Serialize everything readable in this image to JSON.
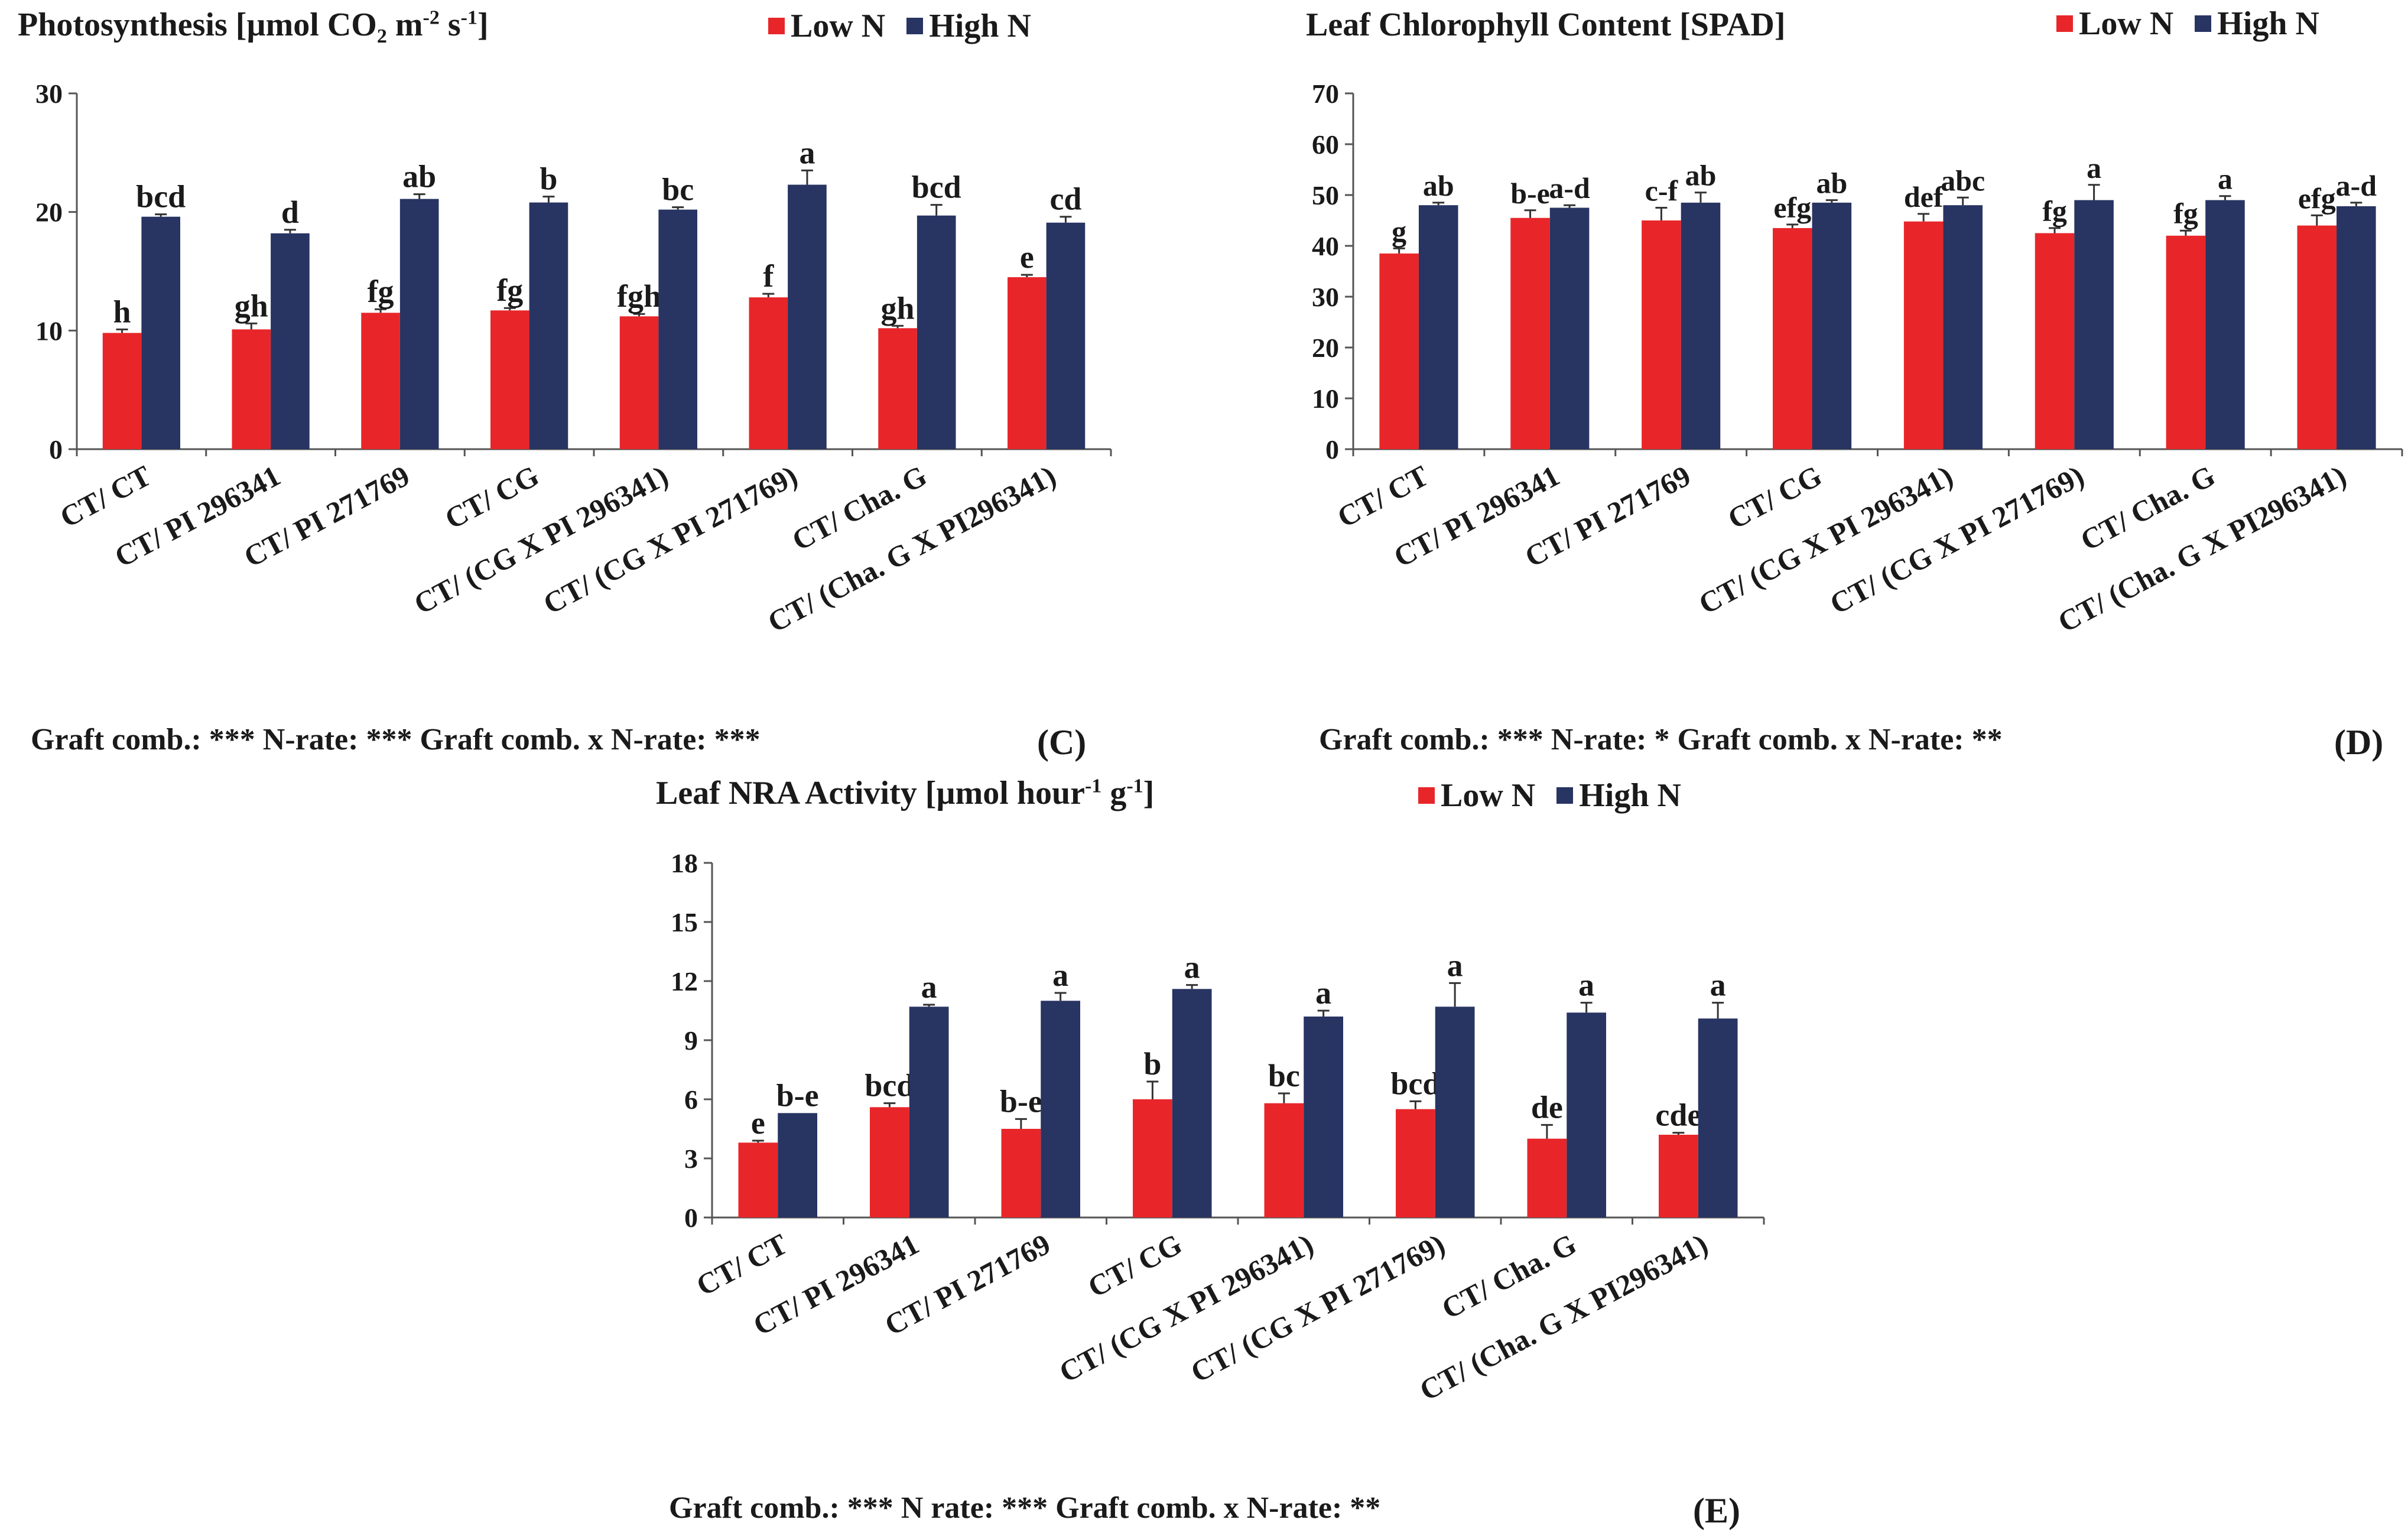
{
  "colors": {
    "low": "#e8262a",
    "high": "#283462",
    "axis": "#555555"
  },
  "panels": {
    "c": {
      "title_main": "Photosynthesis [µmol CO",
      "title_sub": "2",
      "title_after_sub": " m",
      "title_sup1": "-2",
      "title_mid": " s",
      "title_sup2": "-1",
      "title_end": "]",
      "legend_low": "Low N",
      "legend_high": "High N",
      "stats": "Graft comb.: *** N-rate: *** Graft comb. x N-rate: ***",
      "label": "(C)"
    },
    "d": {
      "title": "Leaf Chlorophyll Content [SPAD]",
      "legend_low": "Low N",
      "legend_high": "High N",
      "stats": "Graft comb.: ***   N-rate: *   Graft comb. x N-rate: **",
      "label": "(D)"
    },
    "e": {
      "title_main": "Leaf NRA Activity [µmol hour",
      "title_sup1": "-1",
      "title_mid": " g",
      "title_sup2": "-1",
      "title_end": "]",
      "legend_low": "Low N",
      "legend_high": "High N",
      "stats": "Graft comb.: *** N rate: *** Graft comb. x N-rate: **",
      "label": "(E)"
    }
  },
  "chart_data": [
    {
      "id": "c",
      "type": "bar",
      "title": "Photosynthesis [µmol CO2 m-2 s-1]",
      "categories": [
        "CT/ CT",
        "CT/ PI 296341",
        "CT/ PI 271769",
        "CT/ CG",
        "CT/ (CG X PI 296341)",
        "CT/ (CG X PI 271769)",
        "CT/ Cha. G",
        "CT/ (Cha. G X PI296341)"
      ],
      "ylim": [
        0,
        30
      ],
      "yticks": [
        0,
        10,
        20,
        30
      ],
      "series": [
        {
          "name": "Low N",
          "values": [
            9.8,
            10.1,
            11.5,
            11.7,
            11.2,
            12.8,
            10.2,
            14.5
          ],
          "errors": [
            0.3,
            0.5,
            0.3,
            0.2,
            0.2,
            0.3,
            0.2,
            0.2
          ],
          "letters": [
            "h",
            "gh",
            "fg",
            "fg",
            "fgh",
            "f",
            "gh",
            "e"
          ]
        },
        {
          "name": "High N",
          "values": [
            19.6,
            18.2,
            21.1,
            20.8,
            20.2,
            22.3,
            19.7,
            19.1
          ],
          "errors": [
            0.2,
            0.3,
            0.4,
            0.5,
            0.2,
            1.2,
            0.9,
            0.5
          ],
          "letters": [
            "bcd",
            "d",
            "ab",
            "b",
            "bc",
            "a",
            "bcd",
            "cd"
          ]
        }
      ],
      "legend": "top-right",
      "grid": false
    },
    {
      "id": "d",
      "type": "bar",
      "title": "Leaf Chlorophyll Content [SPAD]",
      "categories": [
        "CT/ CT",
        "CT/ PI 296341",
        "CT/ PI 271769",
        "CT/ CG",
        "CT/ (CG X PI 296341)",
        "CT/ (CG X PI 271769)",
        "CT/ Cha. G",
        "CT/ (Cha. G X PI296341)"
      ],
      "ylim": [
        0,
        70
      ],
      "yticks": [
        0,
        10,
        20,
        30,
        40,
        50,
        60,
        70
      ],
      "series": [
        {
          "name": "Low N",
          "values": [
            38.5,
            45.5,
            45.0,
            43.5,
            44.8,
            42.5,
            42.0,
            44.0
          ],
          "errors": [
            1.0,
            1.5,
            2.5,
            0.7,
            1.5,
            1.0,
            1.0,
            2.0
          ],
          "letters": [
            "g",
            "b-e",
            "c-f",
            "efg",
            "def",
            "fg",
            "fg",
            "efg"
          ]
        },
        {
          "name": "High N",
          "values": [
            48.0,
            47.5,
            48.5,
            48.5,
            48.0,
            49.0,
            49.0,
            47.8
          ],
          "errors": [
            0.5,
            0.5,
            2.0,
            0.5,
            1.5,
            3.0,
            0.8,
            0.7
          ],
          "letters": [
            "ab",
            "a-d",
            "ab",
            "ab",
            "abc",
            "a",
            "a",
            "a-d"
          ]
        }
      ],
      "legend": "top-right",
      "grid": false
    },
    {
      "id": "e",
      "type": "bar",
      "title": "Leaf NRA Activity [µmol hour-1 g-1]",
      "categories": [
        "CT/ CT",
        "CT/ PI 296341",
        "CT/ PI 271769",
        "CT/ CG",
        "CT/ (CG X PI 296341)",
        "CT/ (CG X PI 271769)",
        "CT/ Cha. G",
        "CT/ (Cha. G X PI296341)"
      ],
      "ylim": [
        0,
        18
      ],
      "yticks": [
        0,
        3,
        6,
        9,
        12,
        15,
        18
      ],
      "series": [
        {
          "name": "Low N",
          "values": [
            3.8,
            5.6,
            4.5,
            6.0,
            5.8,
            5.5,
            4.0,
            4.2
          ],
          "errors": [
            0.1,
            0.2,
            0.5,
            0.9,
            0.5,
            0.4,
            0.7,
            0.1
          ],
          "letters": [
            "e",
            "bcd",
            "b-e",
            "b",
            "bc",
            "bcd",
            "de",
            "cde"
          ]
        },
        {
          "name": "High N",
          "values": [
            5.3,
            10.7,
            11.0,
            11.6,
            10.2,
            10.7,
            10.4,
            10.1
          ],
          "errors": [
            0.0,
            0.1,
            0.4,
            0.2,
            0.3,
            1.2,
            0.5,
            0.8
          ],
          "letters": [
            "b-e",
            "a",
            "a",
            "a",
            "a",
            "a",
            "a",
            "a"
          ]
        }
      ],
      "legend": "top-right",
      "grid": false
    }
  ]
}
